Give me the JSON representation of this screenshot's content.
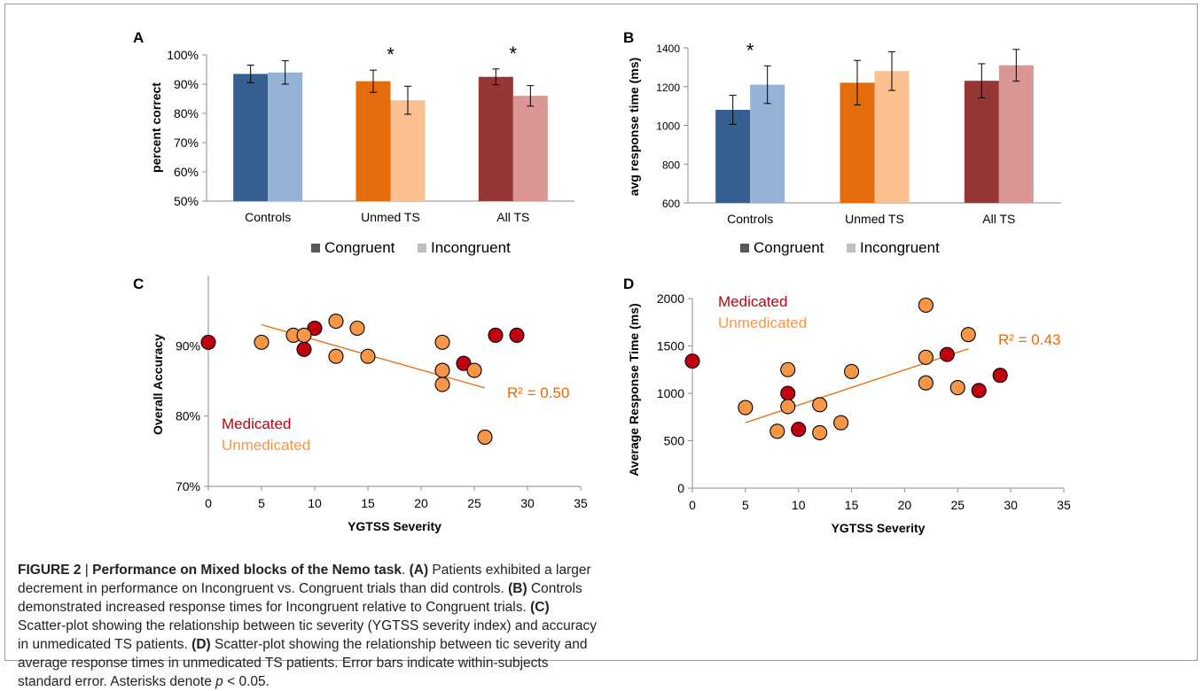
{
  "colors": {
    "controls_congruent": "#365f91",
    "controls_incongruent": "#95b3d7",
    "unmed_congruent": "#e46c0a",
    "unmed_incongruent": "#fac090",
    "all_congruent": "#953735",
    "all_incongruent": "#d99694",
    "medicated": "#c0000f",
    "unmedicated": "#f79646",
    "trend": "#e46c0a"
  },
  "legend": {
    "congruent": "Congruent",
    "incongruent": "Incongruent",
    "congruent_swatch": "#595959",
    "incongruent_swatch": "#bfbfbf"
  },
  "chart_data": [
    {
      "panel": "A",
      "type": "bar",
      "ylabel": "percent correct",
      "ylim": [
        50,
        100
      ],
      "yticks": [
        "50%",
        "60%",
        "70%",
        "80%",
        "90%",
        "100%"
      ],
      "categories": [
        "Controls",
        "Unmed TS",
        "All TS"
      ],
      "series": [
        {
          "name": "Congruent",
          "values": [
            93.5,
            91,
            92.5
          ],
          "errors": [
            3,
            3.8,
            2.7
          ]
        },
        {
          "name": "Incongruent",
          "values": [
            94,
            84.5,
            86
          ],
          "errors": [
            4,
            4.8,
            3.5
          ]
        }
      ],
      "significance": [
        "",
        "*",
        "*"
      ]
    },
    {
      "panel": "B",
      "type": "bar",
      "ylabel": "avg response time (ms)",
      "ylim": [
        600,
        1400
      ],
      "yticks": [
        "600",
        "800",
        "1000",
        "1200",
        "1400"
      ],
      "categories": [
        "Controls",
        "Unmed TS",
        "All TS"
      ],
      "series": [
        {
          "name": "Congruent",
          "values": [
            1080,
            1220,
            1230
          ],
          "errors": [
            75,
            115,
            88
          ]
        },
        {
          "name": "Incongruent",
          "values": [
            1210,
            1280,
            1310
          ],
          "errors": [
            97,
            100,
            82
          ]
        }
      ],
      "significance": [
        "*",
        "",
        ""
      ]
    },
    {
      "panel": "C",
      "type": "scatter",
      "xlabel": "YGTSS Severity",
      "ylabel": "Overall Accuracy",
      "xlim": [
        0,
        35
      ],
      "ylim": [
        70,
        100
      ],
      "xticks": [
        "0",
        "5",
        "10",
        "15",
        "20",
        "25",
        "30",
        "35"
      ],
      "yticks": [
        "70%",
        "80%",
        "90%"
      ],
      "series": [
        {
          "name": "Medicated",
          "points": [
            [
              0,
              90.5
            ],
            [
              9,
              89.5
            ],
            [
              10,
              92.5
            ],
            [
              24,
              87.5
            ],
            [
              27,
              91.5
            ],
            [
              29,
              91.5
            ]
          ]
        },
        {
          "name": "Unmedicated",
          "points": [
            [
              5,
              90.5
            ],
            [
              8,
              91.5
            ],
            [
              9,
              91.5
            ],
            [
              12,
              93.5
            ],
            [
              12,
              88.5
            ],
            [
              14,
              92.5
            ],
            [
              15,
              88.5
            ],
            [
              22,
              90.5
            ],
            [
              22,
              86.5
            ],
            [
              22,
              84.5
            ],
            [
              25,
              86.5
            ],
            [
              26,
              77
            ]
          ]
        }
      ],
      "trendline": {
        "x": [
          5,
          26
        ],
        "y": [
          93,
          84
        ],
        "label": "R² = 0.50"
      }
    },
    {
      "panel": "D",
      "type": "scatter",
      "xlabel": "YGTSS Severity",
      "ylabel": "Average Response Time (ms)",
      "xlim": [
        0,
        35
      ],
      "ylim": [
        0,
        2000
      ],
      "xticks": [
        "0",
        "5",
        "10",
        "15",
        "20",
        "25",
        "30",
        "35"
      ],
      "yticks": [
        "0",
        "500",
        "1000",
        "1500",
        "2000"
      ],
      "series": [
        {
          "name": "Medicated",
          "points": [
            [
              0,
              1340
            ],
            [
              9,
              1000
            ],
            [
              10,
              620
            ],
            [
              24,
              1410
            ],
            [
              27,
              1030
            ],
            [
              29,
              1190
            ]
          ]
        },
        {
          "name": "Unmedicated",
          "points": [
            [
              5,
              850
            ],
            [
              8,
              600
            ],
            [
              9,
              1250
            ],
            [
              9,
              860
            ],
            [
              12,
              880
            ],
            [
              12,
              585
            ],
            [
              14,
              690
            ],
            [
              15,
              1230
            ],
            [
              22,
              1930
            ],
            [
              22,
              1380
            ],
            [
              22,
              1110
            ],
            [
              25,
              1060
            ],
            [
              26,
              1620
            ]
          ]
        }
      ],
      "trendline": {
        "x": [
          5,
          26
        ],
        "y": [
          690,
          1470
        ],
        "label": "R² = 0.43"
      }
    }
  ],
  "caption": {
    "label": "FIGURE 2",
    "sep": " | ",
    "title": "Performance on Mixed blocks of the Nemo task",
    "period": ". ",
    "a": "(A)",
    "a_text": " Patients exhibited a larger decrement in performance on Incongruent vs. Congruent trials than did controls. ",
    "b": "(B)",
    "b_text": " Controls demonstrated increased response times for Incongruent relative to Congruent trials. ",
    "c": "(C)",
    "c_text": " Scatter-plot showing the relationship between tic severity (YGTSS severity index) and accuracy in unmedicated TS patients. ",
    "d": "(D)",
    "d_text": " Scatter-plot showing the relationship between tic severity and average response times in unmedicated TS patients. Error bars indicate within-subjects standard error. Asterisks denote ",
    "p": "p",
    "p_text": " < 0.05."
  }
}
